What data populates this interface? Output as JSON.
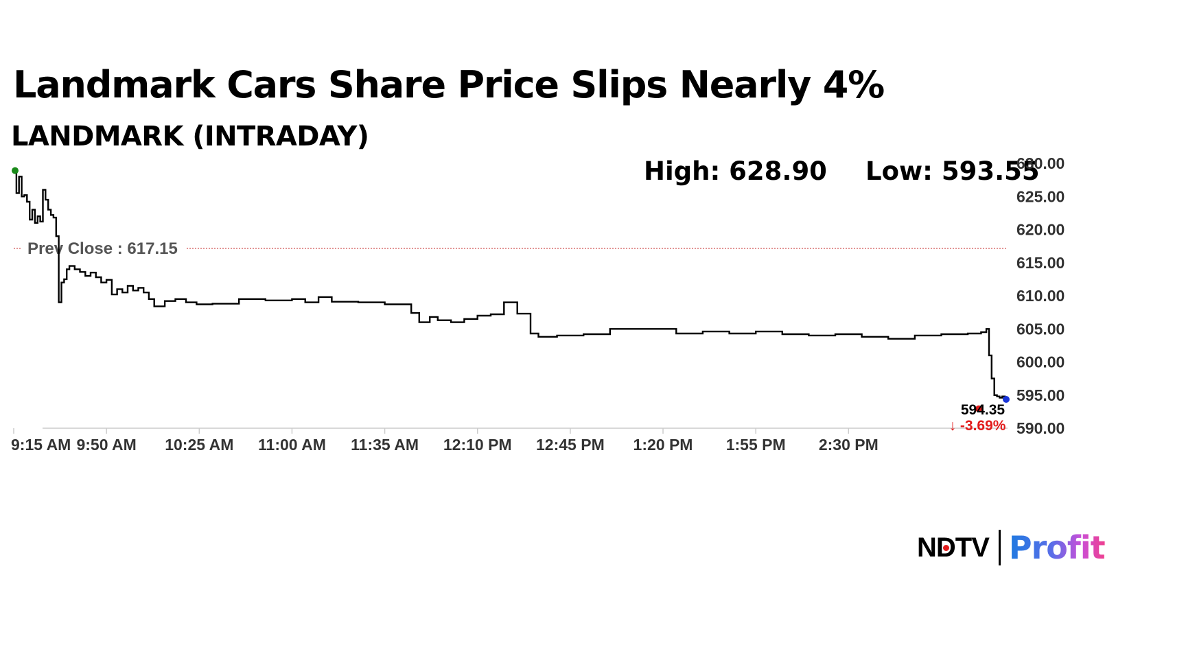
{
  "title": "Landmark Cars Share Price Slips Nearly 4%",
  "subtitle": "LANDMARK (INTRADAY)",
  "stats": {
    "high": "High: 628.90",
    "low": "Low: 593.55"
  },
  "logo": {
    "brand": "NDTV",
    "product": "Profit"
  },
  "colors": {
    "line": "#000000",
    "prev_close": "#c62828",
    "start_marker": "#1a8a1a",
    "end_marker": "#1a35d9",
    "low_marker": "#e21b1b",
    "change": "#e21b1b"
  },
  "chart_data": {
    "type": "line",
    "title": "LANDMARK (INTRADAY)",
    "xlabel": "",
    "ylabel": "",
    "ylim": [
      590,
      630
    ],
    "xlim": [
      "9:15",
      "15:30"
    ],
    "y_axis_side": "right",
    "grid": false,
    "yticks": [
      "630.00",
      "625.00",
      "620.00",
      "615.00",
      "610.00",
      "605.00",
      "600.00",
      "595.00",
      "590.00"
    ],
    "xticks": [
      "9:15 AM",
      "9:50 AM",
      "10:25 AM",
      "11:00 AM",
      "11:35 AM",
      "12:10 PM",
      "12:45 PM",
      "1:20 PM",
      "1:55 PM",
      "2:30 PM"
    ],
    "reference_line": {
      "label": "Prev Close : 617.15",
      "value": 617.15
    },
    "last_price": {
      "label": "594.35",
      "value": 594.35
    },
    "change_label": "↓ -3.69%",
    "series": [
      {
        "points": [
          [
            "9:15",
            628.9
          ],
          [
            "9:16",
            625.5
          ],
          [
            "9:17",
            628.0
          ],
          [
            "9:18",
            625.0
          ],
          [
            "9:19",
            625.2
          ],
          [
            "9:20",
            624.2
          ],
          [
            "9:21",
            621.5
          ],
          [
            "9:22",
            623.0
          ],
          [
            "9:23",
            621.0
          ],
          [
            "9:24",
            622.0
          ],
          [
            "9:25",
            621.2
          ],
          [
            "9:26",
            626.0
          ],
          [
            "9:27",
            624.5
          ],
          [
            "9:28",
            623.0
          ],
          [
            "9:29",
            622.2
          ],
          [
            "9:30",
            621.8
          ],
          [
            "9:31",
            619.0
          ],
          [
            "9:32",
            609.0
          ],
          [
            "9:33",
            612.0
          ],
          [
            "9:34",
            612.5
          ],
          [
            "9:35",
            614.0
          ],
          [
            "9:36",
            614.5
          ],
          [
            "9:38",
            614.0
          ],
          [
            "9:40",
            613.6
          ],
          [
            "9:42",
            613.0
          ],
          [
            "9:44",
            613.5
          ],
          [
            "9:46",
            612.8
          ],
          [
            "9:48",
            612.0
          ],
          [
            "9:50",
            612.4
          ],
          [
            "9:52",
            610.2
          ],
          [
            "9:54",
            611.0
          ],
          [
            "9:56",
            610.5
          ],
          [
            "9:58",
            611.5
          ],
          [
            "10:00",
            610.8
          ],
          [
            "10:02",
            611.2
          ],
          [
            "10:04",
            610.5
          ],
          [
            "10:06",
            609.5
          ],
          [
            "10:08",
            608.4
          ],
          [
            "10:12",
            609.2
          ],
          [
            "10:16",
            609.5
          ],
          [
            "10:20",
            609.0
          ],
          [
            "10:24",
            608.7
          ],
          [
            "10:30",
            608.8
          ],
          [
            "10:40",
            609.5
          ],
          [
            "10:50",
            609.3
          ],
          [
            "11:00",
            609.5
          ],
          [
            "11:05",
            609.0
          ],
          [
            "11:10",
            609.8
          ],
          [
            "11:15",
            609.1
          ],
          [
            "11:25",
            609.0
          ],
          [
            "11:35",
            608.7
          ],
          [
            "11:45",
            607.4
          ],
          [
            "11:48",
            606.0
          ],
          [
            "11:52",
            606.8
          ],
          [
            "11:55",
            606.3
          ],
          [
            "12:00",
            606.0
          ],
          [
            "12:05",
            606.5
          ],
          [
            "12:10",
            607.0
          ],
          [
            "12:15",
            607.2
          ],
          [
            "12:20",
            609.0
          ],
          [
            "12:25",
            607.3
          ],
          [
            "12:30",
            604.3
          ],
          [
            "12:33",
            603.8
          ],
          [
            "12:40",
            604.0
          ],
          [
            "12:50",
            604.2
          ],
          [
            "13:00",
            605.0
          ],
          [
            "13:20",
            605.0
          ],
          [
            "13:25",
            604.3
          ],
          [
            "13:35",
            604.6
          ],
          [
            "13:45",
            604.3
          ],
          [
            "13:55",
            604.6
          ],
          [
            "14:05",
            604.2
          ],
          [
            "14:15",
            604.0
          ],
          [
            "14:25",
            604.2
          ],
          [
            "14:35",
            603.8
          ],
          [
            "14:45",
            603.5
          ],
          [
            "14:55",
            604.0
          ],
          [
            "15:05",
            604.2
          ],
          [
            "15:15",
            604.3
          ],
          [
            "15:20",
            604.5
          ],
          [
            "15:22",
            605.0
          ],
          [
            "15:23",
            601.0
          ],
          [
            "15:24",
            597.5
          ],
          [
            "15:25",
            595.0
          ],
          [
            "15:26",
            594.8
          ],
          [
            "15:27",
            594.6
          ],
          [
            "15:28",
            594.8
          ],
          [
            "15:29",
            594.5
          ],
          [
            "15:30",
            594.35
          ]
        ]
      }
    ]
  }
}
